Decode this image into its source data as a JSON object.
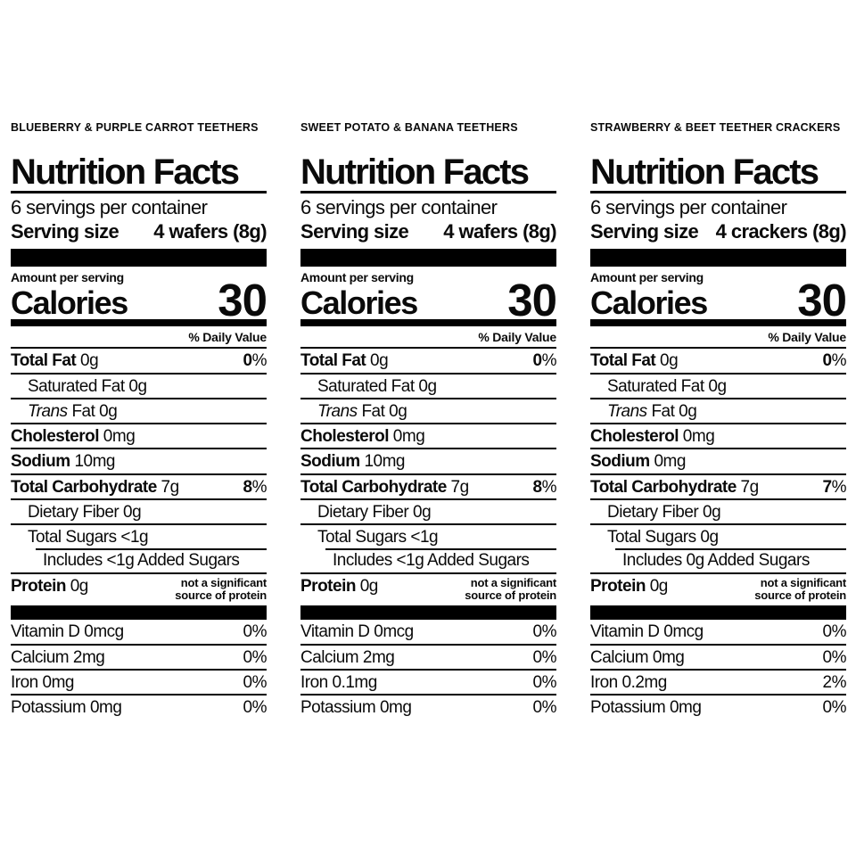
{
  "page": {
    "background_color": "#ffffff",
    "text_color": "#000000"
  },
  "labels": [
    {
      "product_name": "BLUEBERRY & PURPLE CARROT TEETHERS",
      "title": "Nutrition Facts",
      "servings_per_container": "6 servings per container",
      "serving_size_label": "Serving size",
      "serving_size_value": "4 wafers (8g)",
      "amount_per_serving_label": "Amount per serving",
      "calories_label": "Calories",
      "calories_value": "30",
      "daily_value_header": "% Daily Value",
      "nutrient_rows": [
        {
          "parts": [
            {
              "text": "Total Fat",
              "bold": true
            },
            {
              "text": " 0g"
            }
          ],
          "dv": "0%"
        },
        {
          "parts": [
            {
              "text": "Saturated Fat 0g"
            }
          ],
          "indent": 1
        },
        {
          "parts": [
            {
              "text": "Trans",
              "italic": true
            },
            {
              "text": " Fat 0g"
            }
          ],
          "indent": 1
        },
        {
          "parts": [
            {
              "text": "Cholesterol",
              "bold": true
            },
            {
              "text": " 0mg"
            }
          ]
        },
        {
          "parts": [
            {
              "text": "Sodium",
              "bold": true
            },
            {
              "text": " 10mg"
            }
          ]
        },
        {
          "parts": [
            {
              "text": "Total Carbohydrate",
              "bold": true
            },
            {
              "text": " 7g"
            }
          ],
          "dv": "8%"
        },
        {
          "parts": [
            {
              "text": "Dietary Fiber 0g"
            }
          ],
          "indent": 1
        },
        {
          "parts": [
            {
              "text": "Total Sugars <1g"
            }
          ],
          "indent": 1,
          "no_sep_below": true
        },
        {
          "parts": [
            {
              "text": "Includes <1g Added Sugars"
            }
          ],
          "indent": 2,
          "top_sep_indent": true
        },
        {
          "parts": [
            {
              "text": "Protein",
              "bold": true
            },
            {
              "text": " 0g"
            }
          ],
          "note_lines": [
            "not a significant",
            "source of protein"
          ],
          "no_sep_below": true
        }
      ],
      "vitamin_rows": [
        {
          "name": "Vitamin D 0mcg",
          "dv": "0%"
        },
        {
          "name": "Calcium 2mg",
          "dv": "0%"
        },
        {
          "name": "Iron 0mg",
          "dv": "0%"
        },
        {
          "name": "Potassium 0mg",
          "dv": "0%"
        }
      ]
    },
    {
      "product_name": "SWEET POTATO & BANANA TEETHERS",
      "title": "Nutrition Facts",
      "servings_per_container": "6 servings per container",
      "serving_size_label": "Serving size",
      "serving_size_value": "4 wafers (8g)",
      "amount_per_serving_label": "Amount per serving",
      "calories_label": "Calories",
      "calories_value": "30",
      "daily_value_header": "% Daily Value",
      "nutrient_rows": [
        {
          "parts": [
            {
              "text": "Total Fat",
              "bold": true
            },
            {
              "text": " 0g"
            }
          ],
          "dv": "0%"
        },
        {
          "parts": [
            {
              "text": "Saturated Fat 0g"
            }
          ],
          "indent": 1
        },
        {
          "parts": [
            {
              "text": "Trans",
              "italic": true
            },
            {
              "text": " Fat 0g"
            }
          ],
          "indent": 1
        },
        {
          "parts": [
            {
              "text": "Cholesterol",
              "bold": true
            },
            {
              "text": " 0mg"
            }
          ]
        },
        {
          "parts": [
            {
              "text": "Sodium",
              "bold": true
            },
            {
              "text": " 10mg"
            }
          ]
        },
        {
          "parts": [
            {
              "text": "Total Carbohydrate",
              "bold": true
            },
            {
              "text": " 7g"
            }
          ],
          "dv": "8%"
        },
        {
          "parts": [
            {
              "text": "Dietary Fiber 0g"
            }
          ],
          "indent": 1
        },
        {
          "parts": [
            {
              "text": "Total Sugars <1g"
            }
          ],
          "indent": 1,
          "no_sep_below": true
        },
        {
          "parts": [
            {
              "text": "Includes <1g Added Sugars"
            }
          ],
          "indent": 2,
          "top_sep_indent": true
        },
        {
          "parts": [
            {
              "text": "Protein",
              "bold": true
            },
            {
              "text": " 0g"
            }
          ],
          "note_lines": [
            "not a significant",
            "source of protein"
          ],
          "no_sep_below": true
        }
      ],
      "vitamin_rows": [
        {
          "name": "Vitamin D 0mcg",
          "dv": "0%"
        },
        {
          "name": "Calcium 2mg",
          "dv": "0%"
        },
        {
          "name": "Iron 0.1mg",
          "dv": "0%"
        },
        {
          "name": "Potassium 0mg",
          "dv": "0%"
        }
      ]
    },
    {
      "product_name": "STRAWBERRY & BEET TEETHER CRACKERS",
      "title": "Nutrition Facts",
      "servings_per_container": "6 servings per container",
      "serving_size_label": "Serving size",
      "serving_size_value": "4 crackers (8g)",
      "amount_per_serving_label": "Amount per serving",
      "calories_label": "Calories",
      "calories_value": "30",
      "daily_value_header": "% Daily Value",
      "nutrient_rows": [
        {
          "parts": [
            {
              "text": "Total Fat",
              "bold": true
            },
            {
              "text": " 0g"
            }
          ],
          "dv": "0%"
        },
        {
          "parts": [
            {
              "text": "Saturated Fat 0g"
            }
          ],
          "indent": 1
        },
        {
          "parts": [
            {
              "text": "Trans",
              "italic": true
            },
            {
              "text": " Fat 0g"
            }
          ],
          "indent": 1
        },
        {
          "parts": [
            {
              "text": "Cholesterol",
              "bold": true
            },
            {
              "text": " 0mg"
            }
          ]
        },
        {
          "parts": [
            {
              "text": "Sodium",
              "bold": true
            },
            {
              "text": " 0mg"
            }
          ]
        },
        {
          "parts": [
            {
              "text": "Total Carbohydrate",
              "bold": true
            },
            {
              "text": " 7g"
            }
          ],
          "dv": "7%"
        },
        {
          "parts": [
            {
              "text": "Dietary Fiber 0g"
            }
          ],
          "indent": 1
        },
        {
          "parts": [
            {
              "text": "Total Sugars 0g"
            }
          ],
          "indent": 1,
          "no_sep_below": true
        },
        {
          "parts": [
            {
              "text": "Includes 0g Added Sugars"
            }
          ],
          "indent": 2,
          "top_sep_indent": true
        },
        {
          "parts": [
            {
              "text": "Protein",
              "bold": true
            },
            {
              "text": " 0g"
            }
          ],
          "note_lines": [
            "not a significant",
            "source of protein"
          ],
          "no_sep_below": true
        }
      ],
      "vitamin_rows": [
        {
          "name": "Vitamin D 0mcg",
          "dv": "0%"
        },
        {
          "name": "Calcium 0mg",
          "dv": "0%"
        },
        {
          "name": "Iron 0.2mg",
          "dv": "2%"
        },
        {
          "name": "Potassium 0mg",
          "dv": "0%"
        }
      ]
    }
  ]
}
